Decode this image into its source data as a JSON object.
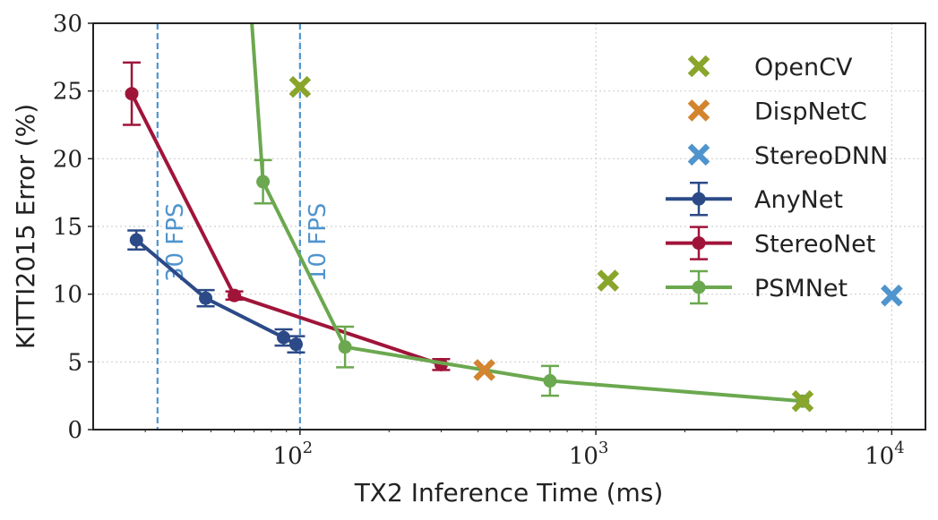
{
  "chart_data": {
    "type": "line",
    "title": "",
    "xlabel": "TX2 Inference Time (ms)",
    "ylabel": "KITTI2015 Error (%)",
    "xscale": "log",
    "xlim": [
      20,
      13000
    ],
    "ylim": [
      0,
      30
    ],
    "grid": true,
    "legend_position": "top-right",
    "x_ticks": [
      {
        "value": 100,
        "base": "10",
        "exp": "2"
      },
      {
        "value": 1000,
        "base": "10",
        "exp": "3"
      },
      {
        "value": 10000,
        "base": "10",
        "exp": "4"
      }
    ],
    "y_ticks": [
      0,
      5,
      10,
      15,
      20,
      25,
      30
    ],
    "reference_lines": [
      {
        "x": 33,
        "label": "30 FPS",
        "color": "#4f94cd"
      },
      {
        "x": 100,
        "label": "10 FPS",
        "color": "#4f94cd"
      }
    ],
    "series": [
      {
        "name": "OpenCV",
        "kind": "marker",
        "color": "#8aa52b",
        "points": [
          {
            "x": 100,
            "y": 25.3
          },
          {
            "x": 1100,
            "y": 11.0
          },
          {
            "x": 5000,
            "y": 2.1
          }
        ]
      },
      {
        "name": "DispNetC",
        "kind": "marker",
        "color": "#d3842f",
        "points": [
          {
            "x": 420,
            "y": 4.4
          }
        ]
      },
      {
        "name": "StereoDNN",
        "kind": "marker",
        "color": "#4f94cd",
        "points": [
          {
            "x": 10000,
            "y": 9.9
          }
        ]
      },
      {
        "name": "AnyNet",
        "kind": "line",
        "color": "#2c4a87",
        "points": [
          {
            "x": 28,
            "y": 14.0,
            "err": 0.7
          },
          {
            "x": 48,
            "y": 9.7,
            "err": 0.6
          },
          {
            "x": 88,
            "y": 6.8,
            "err": 0.6
          },
          {
            "x": 97,
            "y": 6.3,
            "err": 0.6
          }
        ]
      },
      {
        "name": "StereoNet",
        "kind": "line",
        "color": "#a0143a",
        "points": [
          {
            "x": 27,
            "y": 24.8,
            "err": 2.3
          },
          {
            "x": 60,
            "y": 9.9,
            "err": 0.3
          },
          {
            "x": 300,
            "y": 4.8,
            "err": 0.4
          }
        ]
      },
      {
        "name": "PSMNet",
        "kind": "line",
        "color": "#6ba84f",
        "points": [
          {
            "x": 68,
            "y": 31.5,
            "err": 0
          },
          {
            "x": 75,
            "y": 18.3,
            "err": 1.6
          },
          {
            "x": 142,
            "y": 6.1,
            "err": 1.5
          },
          {
            "x": 700,
            "y": 3.6,
            "err": 1.1
          },
          {
            "x": 5000,
            "y": 2.1,
            "err": 0
          }
        ]
      }
    ]
  }
}
